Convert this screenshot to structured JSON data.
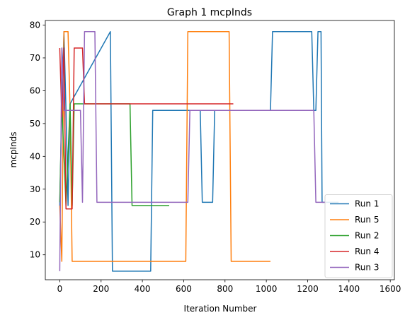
{
  "chart_data": {
    "type": "line",
    "title": "Graph 1 mcpInds",
    "xlabel": "Iteration Number",
    "ylabel": "mcpInds",
    "xlim": [
      -70,
      1620
    ],
    "ylim": [
      2.4,
      81.4
    ],
    "xticks": [
      0,
      200,
      400,
      600,
      800,
      1000,
      1200,
      1400,
      1600
    ],
    "yticks": [
      10,
      20,
      30,
      40,
      50,
      60,
      70,
      80
    ],
    "grid": false,
    "legend_position": "lower-right",
    "series": [
      {
        "name": "Run 1",
        "color": "#1f77b4",
        "x": [
          0,
          10,
          20,
          30,
          40,
          50,
          245,
          255,
          440,
          450,
          680,
          690,
          740,
          750,
          1020,
          1030,
          1220,
          1230,
          1240,
          1250,
          1265,
          1270,
          1280,
          1350
        ],
        "y": [
          25,
          55,
          78,
          54,
          25,
          56,
          78,
          5,
          5,
          54,
          54,
          26,
          26,
          54,
          54,
          78,
          78,
          54,
          54,
          78,
          78,
          26,
          26,
          26
        ]
      },
      {
        "name": "Run 5",
        "color": "#ff7f0e",
        "x": [
          0,
          10,
          20,
          40,
          50,
          60,
          610,
          620,
          820,
          830,
          1020
        ],
        "y": [
          25,
          8,
          78,
          78,
          54,
          8,
          8,
          78,
          78,
          8,
          8
        ]
      },
      {
        "name": "Run 2",
        "color": "#2ca02c",
        "x": [
          0,
          10,
          30,
          50,
          60,
          70,
          340,
          350,
          530
        ],
        "y": [
          26,
          56,
          25,
          56,
          25,
          56,
          56,
          25,
          25
        ]
      },
      {
        "name": "Run 4",
        "color": "#d62728",
        "x": [
          0,
          10,
          20,
          30,
          60,
          70,
          110,
          120,
          840
        ],
        "y": [
          73,
          52,
          73,
          24,
          24,
          73,
          73,
          56,
          56
        ]
      },
      {
        "name": "Run 3",
        "color": "#9467bd",
        "x": [
          0,
          10,
          20,
          100,
          110,
          120,
          130,
          150,
          170,
          180,
          620,
          630,
          1230,
          1240,
          1290
        ],
        "y": [
          5,
          73,
          54,
          54,
          26,
          78,
          78,
          78,
          78,
          26,
          26,
          54,
          54,
          26,
          26
        ]
      }
    ]
  }
}
